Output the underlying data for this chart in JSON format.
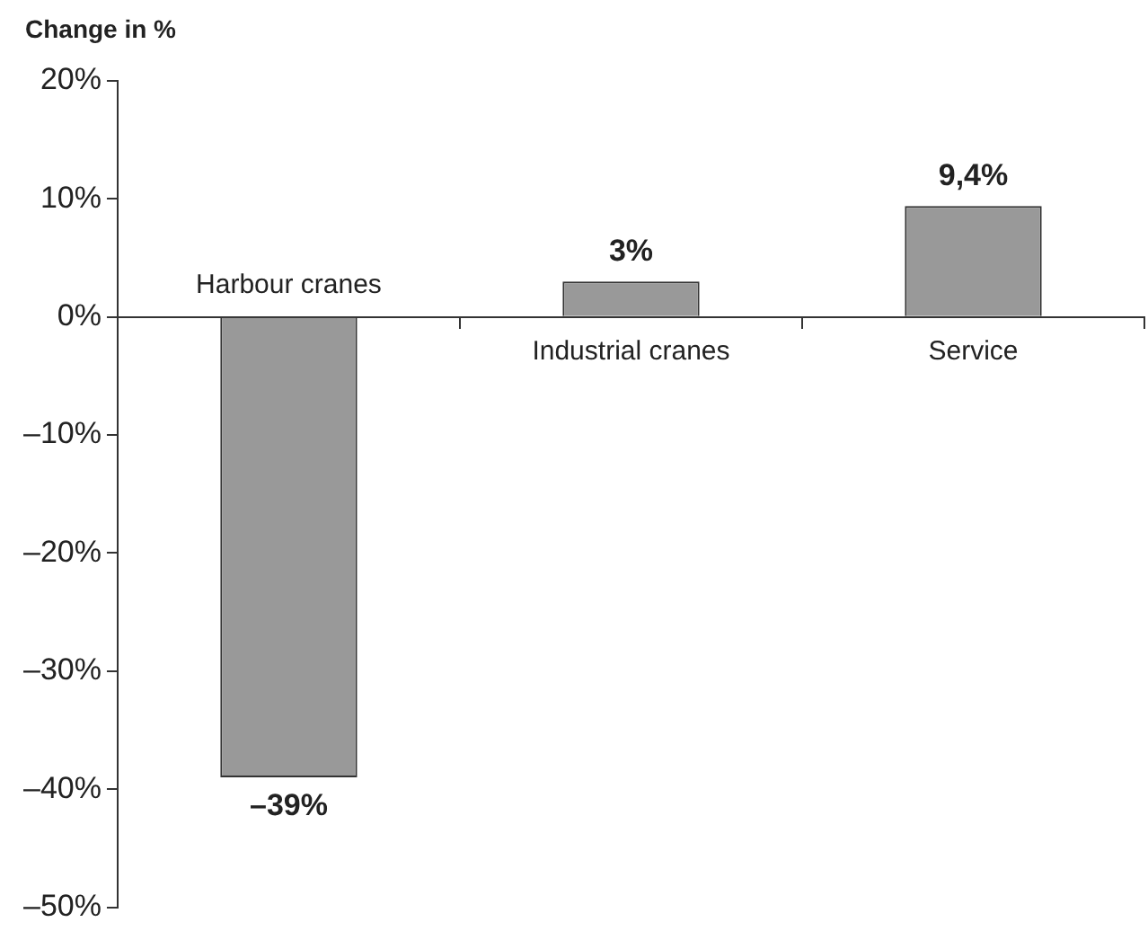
{
  "chart_data": {
    "type": "bar",
    "ylabel": "Change in %",
    "categories": [
      "Harbour cranes",
      "Industrial cranes",
      "Service"
    ],
    "values": [
      -39,
      3,
      9.4
    ],
    "value_labels": [
      "–39%",
      "3%",
      "9,4%"
    ],
    "color": "#999999",
    "ylim": [
      -50,
      20
    ],
    "yticks": [
      {
        "value": 20,
        "label": "20%"
      },
      {
        "value": 10,
        "label": "10%"
      },
      {
        "value": 0,
        "label": "0%"
      },
      {
        "value": -10,
        "label": "–10%"
      },
      {
        "value": -20,
        "label": "–20%"
      },
      {
        "value": -30,
        "label": "–30%"
      },
      {
        "value": -40,
        "label": "–40%"
      },
      {
        "value": -50,
        "label": "–50%"
      }
    ],
    "grid": false,
    "legend": false
  }
}
